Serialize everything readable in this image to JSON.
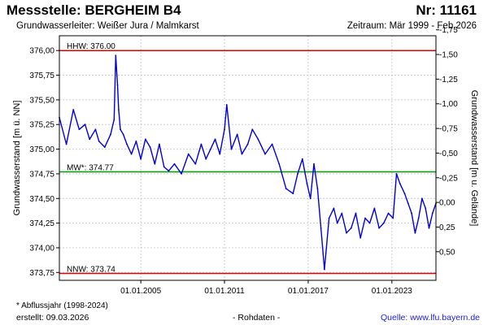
{
  "header": {
    "title": "Messstelle: BERGHEIM B4",
    "number": "Nr: 11161",
    "aquifer": "Grundwasserleiter:  Weißer Jura / Malmkarst",
    "period": "Zeitraum: Mär 1999 - Feb 2026"
  },
  "footer": {
    "footnote": "* Abflussjahr (1998-2024)",
    "created": "erstellt:  09.03.2026",
    "raw_data": "- Rohdaten -",
    "source": "Quelle: www.lfu.bayern.de"
  },
  "colors": {
    "series": "#0000dd",
    "hhw": "#e00000",
    "mw": "#009900",
    "nnw": "#e00000",
    "grid": "#cccccc"
  },
  "chart_data": {
    "type": "line",
    "title": "",
    "ylabel": "Grundwasserstand [m ü. NN]",
    "ylabel_right": "Grundwasserstand [m u. Gelände]",
    "ylim": [
      373.67,
      376.15
    ],
    "xlim": [
      "1999-03-01",
      "2026-02-28"
    ],
    "grid": true,
    "y_ticks": [
      {
        "value": 373.75,
        "label": "373,75"
      },
      {
        "value": 374.0,
        "label": "374,00"
      },
      {
        "value": 374.25,
        "label": "374,25"
      },
      {
        "value": 374.5,
        "label": "374,50"
      },
      {
        "value": 374.75,
        "label": "374,75"
      },
      {
        "value": 375.0,
        "label": "375,00"
      },
      {
        "value": 375.25,
        "label": "375,25"
      },
      {
        "value": 375.5,
        "label": "375,50"
      },
      {
        "value": 375.75,
        "label": "375,75"
      },
      {
        "value": 376.0,
        "label": "376,00"
      }
    ],
    "y_right_ticks": [
      {
        "value": -1.75,
        "label": "-1,75"
      },
      {
        "value": -1.5,
        "label": "-1,50"
      },
      {
        "value": -1.25,
        "label": "-1,25"
      },
      {
        "value": -1.0,
        "label": "-1,00"
      },
      {
        "value": -0.75,
        "label": "-0,75"
      },
      {
        "value": -0.5,
        "label": "-0,50"
      },
      {
        "value": -0.25,
        "label": "-0,25"
      },
      {
        "value": 0.0,
        "label": "0,00"
      },
      {
        "value": 0.25,
        "label": "0,25"
      },
      {
        "value": 0.5,
        "label": "0,50"
      }
    ],
    "x_ticks": [
      {
        "value": "2005-01-01",
        "label": "01.01.2005"
      },
      {
        "value": "2011-01-01",
        "label": "01.01.2011"
      },
      {
        "value": "2017-01-01",
        "label": "01.01.2017"
      },
      {
        "value": "2023-01-01",
        "label": "01.01.2023"
      }
    ],
    "reference_lines": [
      {
        "label": "HHW: 376.00",
        "value": 376.0,
        "color_key": "hhw"
      },
      {
        "label": "MW*: 374.77",
        "value": 374.77,
        "color_key": "mw"
      },
      {
        "label": "NNW: 373.74",
        "value": 373.74,
        "color_key": "nnw"
      }
    ],
    "series": [
      {
        "x": [
          "1999-03-01",
          "1999-09-01",
          "2000-03-01",
          "2000-08-01",
          "2001-01-01",
          "2001-05-01",
          "2001-10-01",
          "2002-01-01",
          "2002-06-01",
          "2002-11-01",
          "2003-02-01",
          "2003-03-15",
          "2003-05-01",
          "2003-06-01",
          "2003-07-15",
          "2003-10-01",
          "2004-01-01",
          "2004-05-01",
          "2004-09-01",
          "2005-01-01",
          "2005-05-01",
          "2005-09-01",
          "2006-01-01",
          "2006-05-01",
          "2006-09-01",
          "2007-01-01",
          "2007-06-01",
          "2007-12-01",
          "2008-06-01",
          "2008-12-01",
          "2009-05-01",
          "2009-09-01",
          "2010-01-01",
          "2010-05-01",
          "2010-09-01",
          "2011-01-01",
          "2011-03-01",
          "2011-07-01",
          "2011-12-01",
          "2012-04-01",
          "2012-09-01",
          "2013-01-01",
          "2013-06-01",
          "2013-12-01",
          "2014-06-01",
          "2014-12-01",
          "2015-06-01",
          "2015-12-01",
          "2016-04-01",
          "2016-08-01",
          "2016-12-01",
          "2017-03-01",
          "2017-06-01",
          "2017-09-01",
          "2017-12-01",
          "2018-03-01",
          "2018-07-01",
          "2018-11-01",
          "2019-02-01",
          "2019-06-01",
          "2019-10-01",
          "2020-02-01",
          "2020-06-01",
          "2020-10-01",
          "2021-02-01",
          "2021-06-01",
          "2021-10-01",
          "2022-02-01",
          "2022-06-01",
          "2022-10-01",
          "2023-02-01",
          "2023-05-01",
          "2023-08-01",
          "2023-12-01",
          "2024-03-01",
          "2024-06-01",
          "2024-09-01",
          "2024-12-01",
          "2025-03-01",
          "2025-06-01",
          "2025-09-01",
          "2025-12-01",
          "2026-02-28"
        ],
        "y": [
          375.32,
          375.05,
          375.4,
          375.2,
          375.25,
          375.1,
          375.2,
          375.08,
          375.02,
          375.15,
          375.3,
          375.95,
          375.65,
          375.4,
          375.2,
          375.15,
          375.05,
          374.95,
          375.08,
          374.9,
          375.1,
          375.02,
          374.85,
          375.05,
          374.82,
          374.78,
          374.85,
          374.75,
          374.95,
          374.85,
          375.05,
          374.9,
          375.0,
          375.1,
          374.95,
          375.2,
          375.45,
          375.0,
          375.15,
          374.95,
          375.05,
          375.2,
          375.1,
          374.95,
          375.05,
          374.85,
          374.6,
          374.55,
          374.75,
          374.9,
          374.65,
          374.5,
          374.85,
          374.6,
          374.2,
          373.78,
          374.3,
          374.4,
          374.25,
          374.35,
          374.15,
          374.2,
          374.35,
          374.1,
          374.3,
          374.25,
          374.4,
          374.2,
          374.25,
          374.35,
          374.3,
          374.75,
          374.65,
          374.55,
          374.45,
          374.35,
          374.15,
          374.3,
          374.5,
          374.4,
          374.2,
          374.35,
          374.45
        ]
      }
    ]
  }
}
